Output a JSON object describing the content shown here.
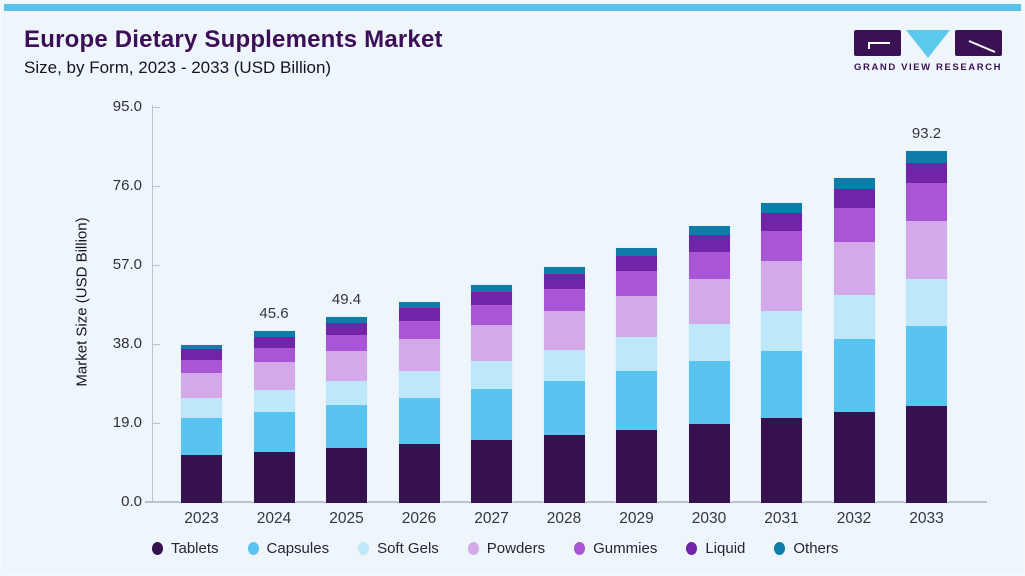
{
  "header": {
    "title": "Europe Dietary Supplements Market",
    "subtitle": "Size, by Form, 2023 - 2033 (USD Billion)",
    "logo_text": "GRAND VIEW RESEARCH"
  },
  "colors": {
    "accent_bar": "#58c1e6",
    "title_text": "#3b0f56",
    "logo_purple": "#3a1253",
    "logo_cyan": "#5bc8ed",
    "card_background": "#eff6fb",
    "axis": "#b9c4cc"
  },
  "chart_data": {
    "type": "bar",
    "stacked": true,
    "title": "Europe Dietary Supplements Market Size, by Form, 2023 - 2033 (USD Billion)",
    "xlabel": "",
    "ylabel": "Market Size (USD Billion)",
    "ylim": [
      0,
      95
    ],
    "ytick_labels": [
      "0.0",
      "19.0",
      "38.0",
      "57.0",
      "76.0",
      "95.0"
    ],
    "grid": false,
    "legend_position": "bottom",
    "categories": [
      "2023",
      "2024",
      "2025",
      "2026",
      "2027",
      "2028",
      "2029",
      "2030",
      "2031",
      "2032",
      "2033"
    ],
    "series": [
      {
        "name": "Tablets",
        "color": "#35124e",
        "values": [
          12.6,
          13.5,
          14.5,
          15.6,
          16.8,
          18.0,
          19.4,
          20.8,
          22.4,
          24.0,
          25.8
        ]
      },
      {
        "name": "Capsules",
        "color": "#5ac4f0",
        "values": [
          9.8,
          10.6,
          11.4,
          12.3,
          13.3,
          14.3,
          15.5,
          16.7,
          18.0,
          19.5,
          21.0
        ]
      },
      {
        "name": "Soft Gels",
        "color": "#bee8f9",
        "values": [
          5.4,
          5.9,
          6.4,
          7.0,
          7.6,
          8.3,
          9.0,
          9.8,
          10.6,
          11.6,
          12.6
        ]
      },
      {
        "name": "Powders",
        "color": "#d3a9e9",
        "values": [
          6.7,
          7.3,
          7.9,
          8.6,
          9.4,
          10.2,
          11.0,
          12.0,
          13.0,
          14.2,
          15.4
        ]
      },
      {
        "name": "Gummies",
        "color": "#a855d6",
        "values": [
          3.5,
          3.9,
          4.3,
          4.8,
          5.3,
          5.9,
          6.5,
          7.3,
          8.0,
          8.9,
          9.9
        ]
      },
      {
        "name": "Liquid",
        "color": "#7124a8",
        "values": [
          2.7,
          2.9,
          3.1,
          3.3,
          3.6,
          3.9,
          4.1,
          4.4,
          4.8,
          5.1,
          5.3
        ]
      },
      {
        "name": "Others",
        "color": "#0e7da8",
        "values": [
          1.3,
          1.4,
          1.6,
          1.7,
          1.9,
          2.0,
          2.2,
          2.4,
          2.7,
          2.9,
          3.2
        ]
      }
    ],
    "total_labels": {
      "2024": "45.6",
      "2025": "49.4",
      "2033": "93.2"
    }
  }
}
